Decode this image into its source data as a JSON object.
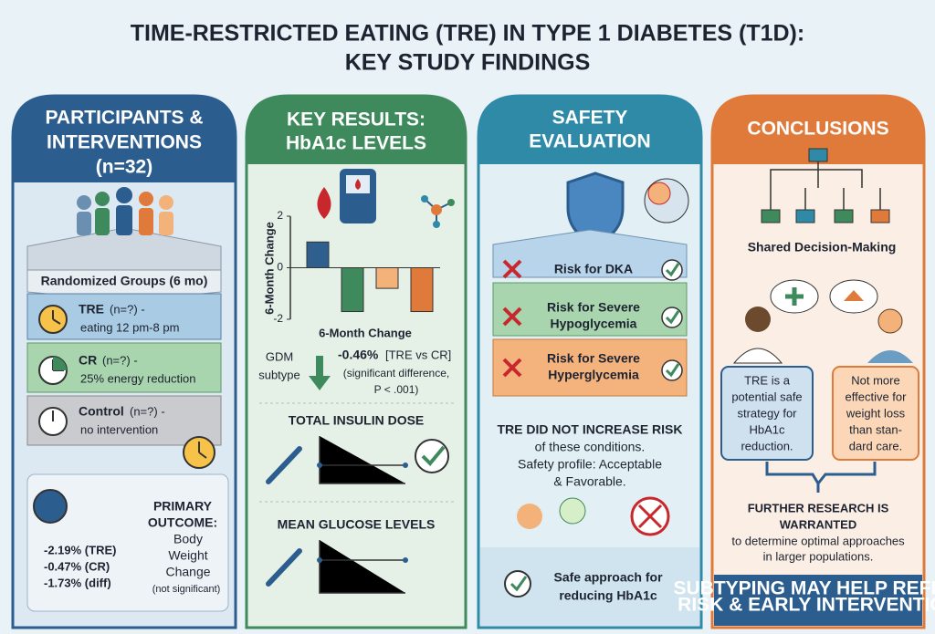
{
  "title": [
    "TIME-RESTRICTED EATING (TRE) IN TYPE 1 DIABETES (T1D):",
    "KEY STUDY FINDINGS"
  ],
  "panels": [
    {
      "heading": [
        "PARTICIPANTS &",
        "INTERVENTIONS",
        "(n=32)"
      ],
      "groups_title": "Randomized Groups (6 mo)",
      "groups": [
        {
          "name": "TRE",
          "detail": "(n=?) -",
          "desc": "eating 12 pm-8 pm"
        },
        {
          "name": "CR",
          "detail": "(n=?) -",
          "desc": "25% energy reduction"
        },
        {
          "name": "Control",
          "detail": "(n=?) -",
          "desc": "no intervention"
        }
      ],
      "outcome_values": [
        "-2.19% (TRE)",
        "-0.47% (CR)",
        "-1.73% (diff)"
      ],
      "outcome_label": [
        "PRIMARY",
        "OUTCOME:"
      ],
      "outcome_desc": [
        "Body",
        "Weight",
        "Change"
      ],
      "outcome_note": "(not significant)"
    },
    {
      "heading": [
        "KEY RESULTS:",
        "HbA1c LEVELS"
      ],
      "chart": {
        "type": "bar",
        "y_label": "6-Month Change",
        "x_label": "6-Month Change",
        "ylim": [
          -2,
          2
        ],
        "yticks": [
          -2,
          0,
          2
        ],
        "values": [
          1.0,
          -1.7,
          -0.8,
          -1.7
        ],
        "colors": [
          "#2f5f8f",
          "#3e8a5c",
          "#f2b27a",
          "#e07a3a"
        ]
      },
      "subtype": [
        "GDM",
        "subtype"
      ],
      "result": "-0.46%",
      "result_rest": "[TRE vs CR]",
      "significance": [
        "(significant difference,",
        "P < .001)"
      ],
      "sections": [
        "TOTAL INSULIN DOSE",
        "MEAN GLUCOSE LEVELS"
      ]
    },
    {
      "heading": [
        "SAFETY",
        "EVALUATION"
      ],
      "risks": [
        [
          "Risk for DKA"
        ],
        [
          "Risk for Severe",
          "Hypoglycemia"
        ],
        [
          "Risk for Severe",
          "Hyperglycemia"
        ]
      ],
      "statement": "TRE DID NOT INCREASE RISK",
      "statement_rest": [
        "of these conditions.",
        "Safety profile: Acceptable",
        "& Favorable."
      ],
      "footer": [
        "Safe approach for",
        "reducing HbA1c"
      ]
    },
    {
      "heading": [
        "CONCLUSIONS"
      ],
      "decision": "Shared Decision-Making",
      "left_box": [
        "TRE is a",
        "potential safe",
        "strategy for",
        "HbA1c",
        "reduction."
      ],
      "right_box": [
        "Not more",
        "effective for",
        "weight loss",
        "than stan-",
        "dard care."
      ],
      "further": [
        "FURTHER RESEARCH IS",
        "WARRANTED"
      ],
      "further_rest": [
        "to determine optimal approaches",
        "in larger populations."
      ],
      "footer": [
        "SUBTYPING MAY HELP REFINE",
        "RISK & EARLY INTERVENTION"
      ]
    }
  ]
}
